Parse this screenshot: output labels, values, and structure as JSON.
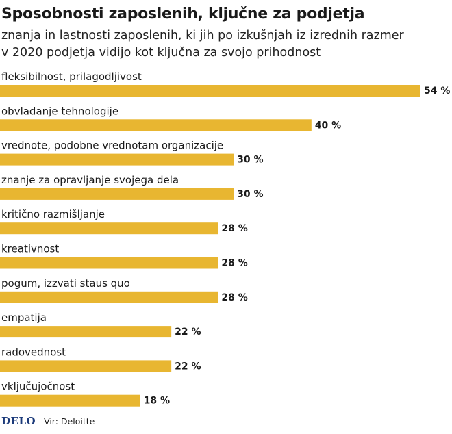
{
  "header": {
    "title": "Sposobnosti zaposlenih, ključne za podjetja",
    "subtitle_line1": "znanja in lastnosti zaposlenih, ki jih po izkušnjah iz izrednih razmer",
    "subtitle_line2": "v 2020 podjetja vidijo kot ključna za svojo prihodnost"
  },
  "chart_data": {
    "type": "bar",
    "orientation": "horizontal",
    "title": "Sposobnosti zaposlenih, ključne za podjetja",
    "subtitle": "znanja in lastnosti zaposlenih, ki jih po izkušnjah iz izrednih razmer v 2020 podjetja vidijo kot ključna za svojo prihodnost",
    "categories": [
      "fleksibilnost, prilagodljivost",
      "obvladanje tehnologije",
      "vrednote, podobne vrednotam organizacije",
      "znanje za opravljanje svojega dela",
      "kritično razmišljanje",
      "kreativnost",
      "pogum, izzvati staus quo",
      "empatija",
      "radovednost",
      "vključujočnost"
    ],
    "values": [
      54,
      40,
      30,
      30,
      28,
      28,
      28,
      22,
      22,
      18
    ],
    "value_labels": [
      "54 %",
      "40 %",
      "30 %",
      "30 %",
      "28 %",
      "28 %",
      "28 %",
      "22 %",
      "22 %",
      "18 %"
    ],
    "unit": "%",
    "xlim": [
      0,
      54
    ],
    "bar_color": "#e8b631",
    "grid": false,
    "legend": "none"
  },
  "footer": {
    "logo": "DELO",
    "source": "Vir: Deloitte"
  }
}
